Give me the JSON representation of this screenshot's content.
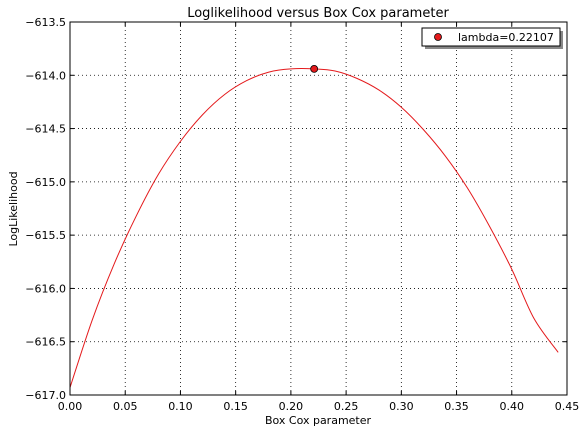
{
  "chart_data": {
    "type": "line",
    "title": "Loglikelihood versus Box Cox parameter",
    "xlabel": "Box Cox parameter",
    "ylabel": "LogLikelihood",
    "xlim": [
      0.0,
      0.45
    ],
    "ylim": [
      -617.0,
      -613.5
    ],
    "xticks": [
      "0.00",
      "0.05",
      "0.10",
      "0.15",
      "0.20",
      "0.25",
      "0.30",
      "0.35",
      "0.40",
      "0.45"
    ],
    "yticks": [
      "−613.5",
      "−614.0",
      "−614.5",
      "−615.0",
      "−615.5",
      "−616.0",
      "−616.5",
      "−617.0"
    ],
    "grid": true,
    "legend_position": "top-right",
    "line_color": "#e41a1c",
    "series": [
      {
        "x": [
          0.0,
          0.02,
          0.04,
          0.06,
          0.08,
          0.1,
          0.12,
          0.14,
          0.16,
          0.18,
          0.2,
          0.22107,
          0.24,
          0.26,
          0.28,
          0.3,
          0.32,
          0.34,
          0.36,
          0.38,
          0.4,
          0.42,
          0.442
        ],
        "values": [
          -616.93,
          -616.3,
          -615.77,
          -615.32,
          -614.93,
          -614.62,
          -614.37,
          -614.18,
          -614.05,
          -613.97,
          -613.94,
          -613.94,
          -613.96,
          -614.03,
          -614.14,
          -614.3,
          -614.51,
          -614.76,
          -615.06,
          -615.42,
          -615.82,
          -616.28,
          -616.6
        ]
      },
      {
        "name": "lambda=0.22107",
        "marker": "circle",
        "x": [
          0.22107
        ],
        "values": [
          -613.94
        ]
      }
    ]
  }
}
